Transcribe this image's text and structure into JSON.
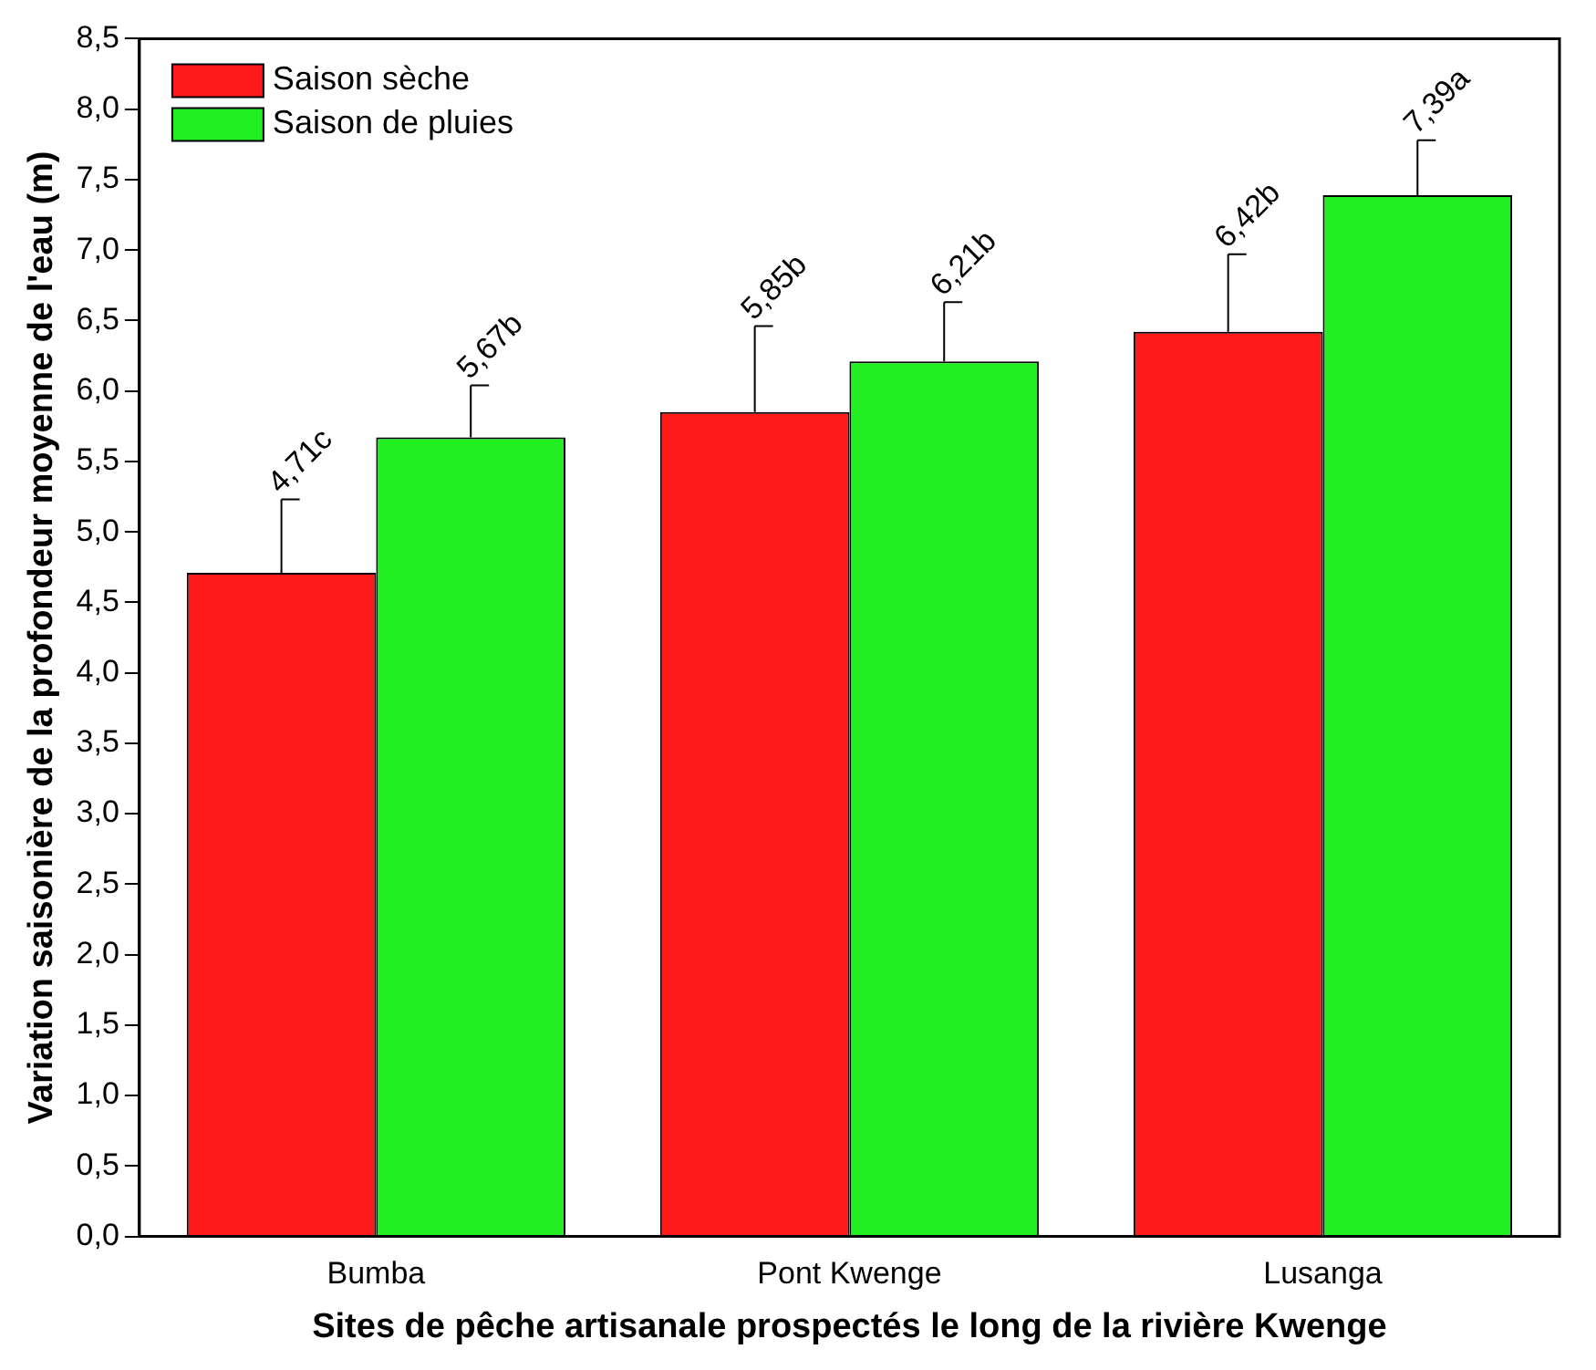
{
  "chart_data": {
    "type": "bar",
    "xlabel": "Sites de pêche artisanale prospectés le long de la rivière Kwenge",
    "ylabel": "Variation saisonière de la profondeur moyenne de l'eau (m)",
    "categories": [
      "Bumba",
      "Pont Kwenge",
      "Lusanga"
    ],
    "series": [
      {
        "name": "Saison sèche",
        "color": "#ff1a1a",
        "values": [
          4.71,
          5.85,
          6.42
        ],
        "errors": [
          [
            4.71,
            5.23
          ],
          [
            5.85,
            6.46
          ],
          [
            6.42,
            6.97
          ]
        ],
        "value_labels": [
          "4,71c",
          "5,85b",
          "6,42b"
        ]
      },
      {
        "name": "Saison de pluies",
        "color": "#22ee22",
        "values": [
          5.67,
          6.21,
          7.39
        ],
        "errors": [
          [
            5.67,
            6.04
          ],
          [
            6.21,
            6.63
          ],
          [
            7.39,
            7.78
          ]
        ],
        "value_labels": [
          "5,67b",
          "6,21b",
          "7,39a"
        ]
      }
    ],
    "ylim": [
      0,
      8.5
    ],
    "yticks": [
      {
        "value": 0,
        "label": "0,0"
      },
      {
        "value": 0.5,
        "label": "0,5"
      },
      {
        "value": 1,
        "label": "1,0"
      },
      {
        "value": 1.5,
        "label": "1,5"
      },
      {
        "value": 2,
        "label": "2,0"
      },
      {
        "value": 2.5,
        "label": "2,5"
      },
      {
        "value": 3,
        "label": "3,0"
      },
      {
        "value": 3.5,
        "label": "3,5"
      },
      {
        "value": 4,
        "label": "4,0"
      },
      {
        "value": 4.5,
        "label": "4,5"
      },
      {
        "value": 5,
        "label": "5,0"
      },
      {
        "value": 5.5,
        "label": "5,5"
      },
      {
        "value": 6,
        "label": "6,0"
      },
      {
        "value": 6.5,
        "label": "6,5"
      },
      {
        "value": 7,
        "label": "7,0"
      },
      {
        "value": 7.5,
        "label": "7,5"
      },
      {
        "value": 8,
        "label": "8,0"
      },
      {
        "value": 8.5,
        "label": "8,5"
      }
    ],
    "grid": false,
    "legend": "top left"
  }
}
